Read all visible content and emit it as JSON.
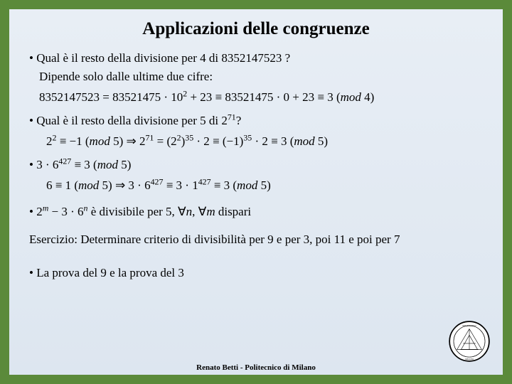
{
  "colors": {
    "frame": "#5b8a3a",
    "slide_bg_top": "#e8eef5",
    "slide_bg_bottom": "#dde6f0",
    "text": "#000000"
  },
  "typography": {
    "title_fontsize": 25,
    "body_fontsize": 17,
    "footer_fontsize": 11,
    "title_weight": "bold",
    "family_body": "Times New Roman",
    "family_math": "Cambria Math"
  },
  "title": "Applicazioni delle congruenze",
  "bullets": {
    "b1": "• Qual è il resto della divisione per 4 di 8352147523 ?",
    "b1_sub1": "Dipende solo dalle ultime due cifre:",
    "b1_sub2_html": "8352147523 = 83521475 · 10<sup>2</sup> + 23 ≡ 83521475 · 0 + 23 ≡ 3 (<i>mod</i> 4)",
    "b2_html": "• Qual è il resto della divisione per 5 di 2<sup>71</sup>?",
    "b2_sub_html": "2<sup>2</sup> ≡ −1 (<i>mod</i> 5)  ⇒  2<sup>71</sup> = (2<sup>2</sup>)<sup>35</sup> · 2 ≡ (−1)<sup>35</sup> · 2 ≡ 3 (<i>mod</i> 5)",
    "b3_html": "• 3 · 6<sup>427</sup> ≡ 3 (<i>mod</i> 5)",
    "b3_sub_html": "6 ≡ 1 (<i>mod</i> 5)  ⇒  3 · 6<sup>427</sup> ≡ 3 · 1<sup>427</sup> ≡ 3 (<i>mod</i> 5)",
    "b4_prefix": "• ",
    "b4_math_html": "2<sup><i>m</i></sup> − 3 · 6<sup><i>n</i></sup>",
    "b4_mid": "    è divisibile per 5, ",
    "b4_quant_html": "∀<i>n</i>, ∀<i>m</i>",
    "b4_suffix": "    dispari",
    "exercise": "Esercizio: Determinare criterio di divisibilità per 9 e per 3, poi 11 e poi per 7",
    "b5": "• La prova del 9 e la prova del 3"
  },
  "footer": "Renato Betti  -  Politecnico di Milano",
  "logo": {
    "label": "politecnico-milano-seal",
    "outer_stroke": "#000000",
    "inner_fill": "#ffffff"
  }
}
